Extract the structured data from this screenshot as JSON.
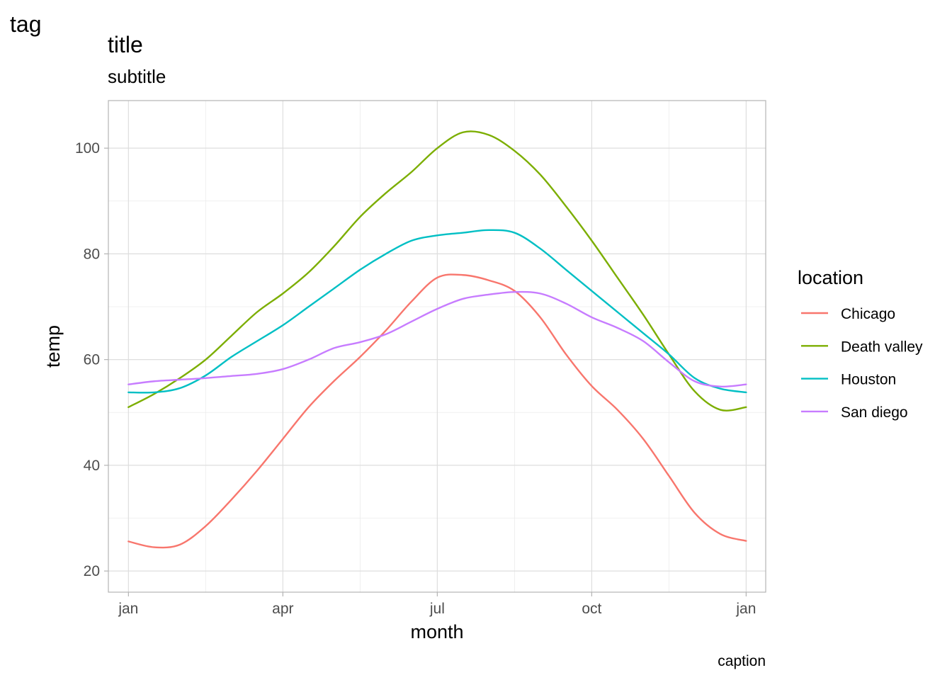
{
  "tag": "tag",
  "chart_data": {
    "type": "line",
    "title": "title",
    "subtitle": "subtitle",
    "caption": "caption",
    "xlabel": "month",
    "ylabel": "temp",
    "x": [
      1,
      1.5,
      2,
      2.5,
      3,
      3.5,
      4,
      4.5,
      5,
      5.5,
      6,
      6.5,
      7,
      7.5,
      8,
      8.5,
      9,
      9.5,
      10,
      10.5,
      11,
      11.5,
      12,
      12.5,
      13
    ],
    "xlim": [
      0.61,
      13.38
    ],
    "ylim": [
      16,
      109
    ],
    "x_ticks": [
      {
        "value": 1,
        "label": "jan"
      },
      {
        "value": 4,
        "label": "apr"
      },
      {
        "value": 7,
        "label": "jul"
      },
      {
        "value": 10,
        "label": "oct"
      },
      {
        "value": 13,
        "label": "jan"
      }
    ],
    "x_minor_ticks": [
      2.5,
      5.5,
      8.5,
      11.5
    ],
    "y_ticks": [
      20,
      40,
      60,
      80,
      100
    ],
    "y_minor_ticks": [
      30,
      50,
      70,
      90
    ],
    "grid": true,
    "legend": {
      "title": "location",
      "placement": "right"
    },
    "series": [
      {
        "name": "Chicago",
        "color": "#F8766D",
        "values": [
          25.6,
          24.5,
          25.0,
          28.5,
          33.5,
          39.0,
          45.0,
          51.0,
          56.0,
          60.5,
          65.5,
          71.0,
          75.5,
          76.0,
          75.0,
          73.0,
          68.0,
          61.0,
          55.0,
          50.5,
          45.0,
          38.0,
          31.0,
          27.0,
          25.7
        ]
      },
      {
        "name": "Death valley",
        "color": "#7CAE00",
        "values": [
          51.0,
          53.5,
          56.5,
          60.0,
          64.5,
          69.0,
          72.5,
          76.5,
          81.5,
          87.0,
          91.5,
          95.5,
          100.0,
          103.0,
          102.5,
          99.5,
          95.0,
          89.0,
          82.5,
          75.5,
          68.5,
          61.0,
          54.0,
          50.5,
          51.0
        ]
      },
      {
        "name": "Houston",
        "color": "#00BFC4",
        "values": [
          53.8,
          53.8,
          54.6,
          57.0,
          60.5,
          63.5,
          66.5,
          70.0,
          73.5,
          77.0,
          80.0,
          82.5,
          83.5,
          84.0,
          84.5,
          84.0,
          81.0,
          77.0,
          73.0,
          69.0,
          65.0,
          61.0,
          56.5,
          54.5,
          53.8
        ]
      },
      {
        "name": "San diego",
        "color": "#C77CFF",
        "values": [
          55.3,
          55.9,
          56.2,
          56.5,
          56.9,
          57.3,
          58.2,
          60.0,
          62.2,
          63.3,
          64.8,
          67.2,
          69.6,
          71.5,
          72.3,
          72.8,
          72.5,
          70.6,
          68.0,
          66.0,
          63.5,
          59.5,
          55.9,
          54.9,
          55.3
        ]
      }
    ]
  }
}
